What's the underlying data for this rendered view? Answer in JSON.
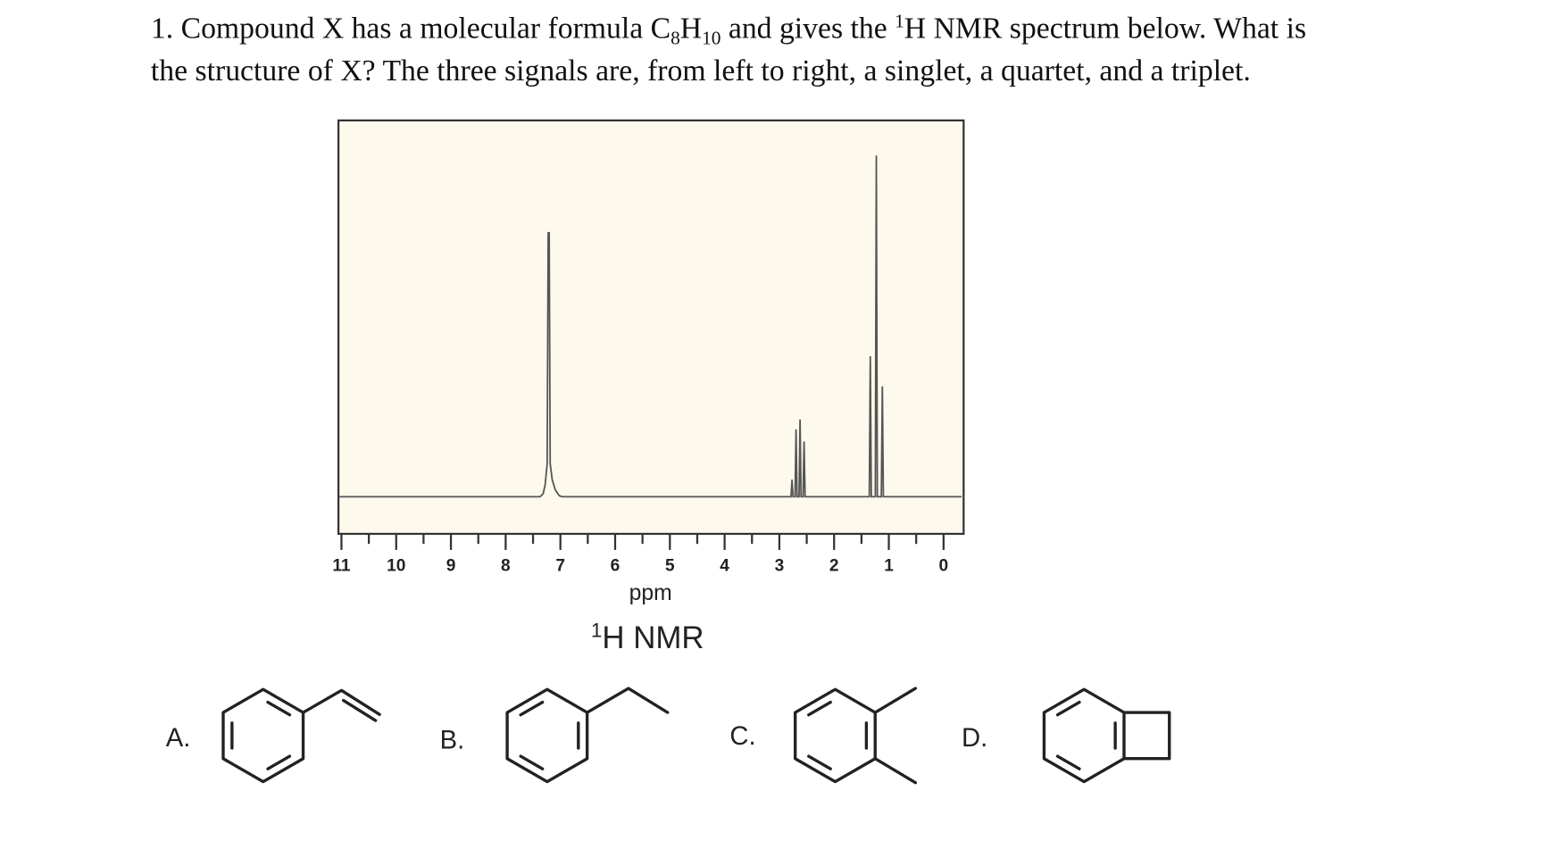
{
  "question": {
    "number_and_start": "1. Compound X has a molecular formula C",
    "c_count": "8",
    "h_symbol": "H",
    "h_count": "10",
    "middle": " and gives the ",
    "isotope": "1",
    "line1_end": "H NMR spectrum below. What is",
    "line2": "the structure of X? The three signals are, from left to right, a singlet, a quartet, and a triplet."
  },
  "spectrum": {
    "tick_labels": [
      11,
      10,
      9,
      8,
      7,
      6,
      5,
      4,
      3,
      2,
      1,
      0
    ],
    "axis_label": "ppm",
    "caption_isotope": "1",
    "caption": "H NMR"
  },
  "options": [
    "A.",
    "B.",
    "C.",
    "D."
  ]
}
